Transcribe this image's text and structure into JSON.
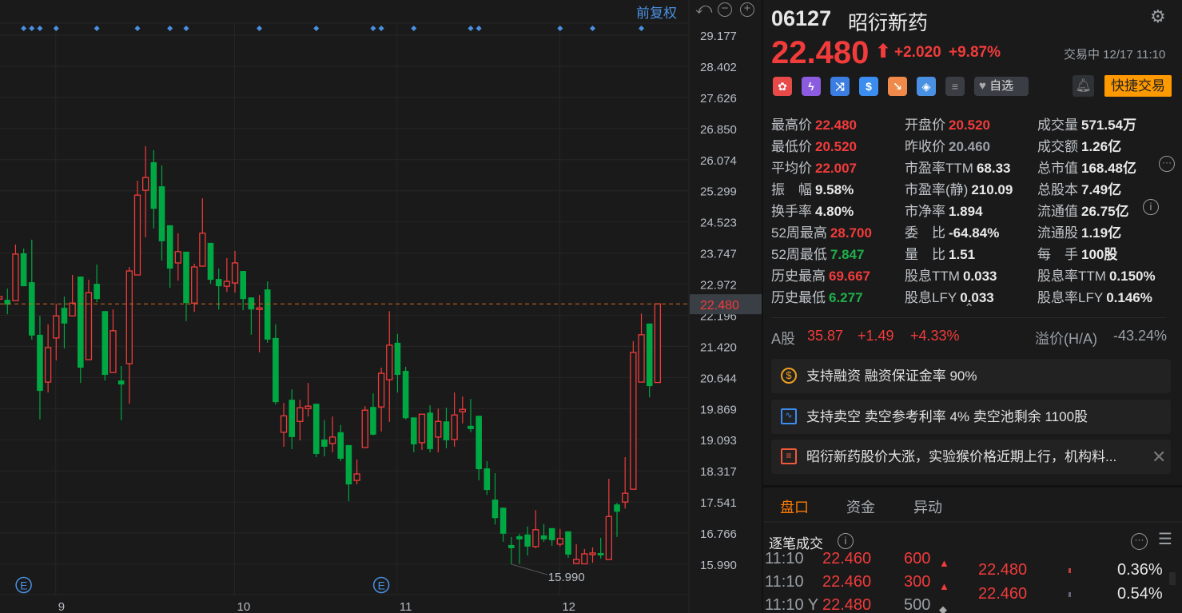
{
  "toolbar": {
    "adjust_label": "前复权",
    "icons": [
      "undo-icon",
      "zoom-out-icon",
      "zoom-in-icon"
    ]
  },
  "chart_data": {
    "type": "candlestick",
    "y_ticks": [
      "29.177",
      "28.402",
      "27.626",
      "26.850",
      "26.074",
      "25.299",
      "24.523",
      "23.747",
      "22.972",
      "22.196",
      "21.420",
      "20.644",
      "19.869",
      "19.093",
      "18.317",
      "17.541",
      "16.766",
      "15.990"
    ],
    "ylim": [
      15.99,
      29.177
    ],
    "x_ticks": [
      {
        "label": "9",
        "candle": 7
      },
      {
        "label": "10",
        "candle": 29
      },
      {
        "label": "11",
        "candle": 49
      },
      {
        "label": "12",
        "candle": 69
      }
    ],
    "current_price": "22.480",
    "low_marker": {
      "label": "15.990",
      "candle": 63
    },
    "event_markers": [
      3,
      4,
      5,
      7,
      12,
      17,
      21,
      23,
      32,
      39,
      46,
      47,
      51,
      58,
      59,
      69,
      73,
      79
    ],
    "e_markers": [
      3,
      47
    ],
    "colors": {
      "up": "#f23b3b",
      "down": "#00a843",
      "price_line": "#d2691e",
      "event": "#4a90e2"
    },
    "ohlc": [
      [
        22.6,
        22.72,
        22.56,
        22.66
      ],
      [
        22.58,
        22.86,
        22.22,
        22.46
      ],
      [
        22.56,
        23.96,
        22.56,
        23.72
      ],
      [
        23.74,
        23.86,
        22.92,
        22.92
      ],
      [
        23.02,
        24.08,
        21.59,
        21.69
      ],
      [
        21.71,
        22.18,
        19.6,
        20.31
      ],
      [
        20.53,
        21.97,
        20.27,
        21.39
      ],
      [
        21.63,
        22.48,
        21.07,
        22.18
      ],
      [
        22.38,
        22.66,
        21.37,
        21.99
      ],
      [
        22.18,
        23.2,
        22.18,
        22.5
      ],
      [
        23.16,
        23.16,
        20.51,
        20.89
      ],
      [
        21.09,
        23.08,
        21.09,
        22.76
      ],
      [
        22.98,
        23.46,
        22.52,
        22.6
      ],
      [
        22.3,
        22.3,
        20.57,
        20.71
      ],
      [
        20.77,
        22.34,
        20.77,
        21.81
      ],
      [
        20.57,
        20.93,
        19.58,
        20.47
      ],
      [
        20.99,
        23.4,
        19.99,
        23.3
      ],
      [
        23.2,
        25.55,
        23.2,
        25.19
      ],
      [
        25.31,
        26.41,
        24.14,
        25.63
      ],
      [
        26.01,
        26.31,
        24.36,
        24.85
      ],
      [
        25.41,
        25.93,
        23.56,
        24.04
      ],
      [
        24.44,
        24.44,
        22.88,
        23.36
      ],
      [
        23.5,
        24.24,
        23.06,
        23.78
      ],
      [
        23.78,
        23.78,
        22.05,
        22.5
      ],
      [
        22.5,
        23.48,
        22.28,
        23.4
      ],
      [
        23.42,
        25.11,
        23.42,
        24.24
      ],
      [
        24.0,
        24.0,
        22.98,
        23.08
      ],
      [
        23.1,
        23.36,
        22.34,
        22.92
      ],
      [
        22.92,
        23.62,
        22.78,
        23.04
      ],
      [
        23.0,
        23.8,
        22.76,
        23.5
      ],
      [
        23.3,
        23.3,
        22.32,
        22.6
      ],
      [
        22.64,
        22.64,
        21.71,
        22.34
      ],
      [
        22.34,
        22.7,
        21.27,
        22.38
      ],
      [
        22.84,
        23.04,
        21.51,
        21.59
      ],
      [
        21.63,
        21.97,
        19.97,
        20.03
      ],
      [
        19.28,
        20.01,
        18.92,
        19.69
      ],
      [
        20.09,
        20.35,
        18.86,
        19.16
      ],
      [
        19.55,
        20.09,
        19.08,
        19.89
      ],
      [
        19.87,
        20.51,
        19.67,
        19.93
      ],
      [
        19.99,
        19.99,
        18.66,
        18.74
      ],
      [
        19.1,
        19.58,
        18.68,
        18.92
      ],
      [
        19.0,
        19.67,
        18.78,
        19.16
      ],
      [
        19.28,
        19.46,
        18.56,
        18.62
      ],
      [
        18.96,
        18.96,
        17.56,
        17.98
      ],
      [
        18.08,
        18.6,
        17.98,
        18.24
      ],
      [
        18.9,
        19.93,
        18.9,
        19.83
      ],
      [
        19.91,
        20.25,
        19.2,
        19.22
      ],
      [
        19.91,
        20.89,
        19.3,
        20.75
      ],
      [
        20.59,
        22.3,
        19.54,
        21.45
      ],
      [
        21.51,
        21.73,
        20.27,
        20.71
      ],
      [
        20.81,
        20.91,
        19.6,
        19.63
      ],
      [
        19.65,
        19.65,
        18.78,
        18.98
      ],
      [
        19.02,
        19.73,
        18.84,
        19.73
      ],
      [
        19.77,
        19.95,
        18.78,
        18.86
      ],
      [
        19.16,
        19.87,
        18.78,
        19.55
      ],
      [
        19.55,
        19.89,
        18.88,
        19.08
      ],
      [
        19.1,
        20.27,
        18.92,
        19.71
      ],
      [
        19.79,
        20.17,
        19.5,
        19.85
      ],
      [
        19.44,
        20.11,
        19.28,
        19.36
      ],
      [
        19.69,
        19.69,
        18.08,
        18.36
      ],
      [
        18.38,
        18.56,
        17.72,
        17.84
      ],
      [
        17.6,
        18.26,
        16.98,
        17.14
      ],
      [
        17.4,
        17.4,
        16.55,
        16.75
      ],
      [
        16.47,
        16.67,
        15.99,
        16.39
      ],
      [
        16.69,
        16.75,
        16.0,
        16.61
      ],
      [
        16.73,
        16.93,
        16.21,
        16.43
      ],
      [
        16.43,
        17.34,
        16.39,
        16.85
      ],
      [
        16.71,
        16.99,
        16.55,
        16.61
      ],
      [
        16.89,
        16.89,
        16.45,
        16.59
      ],
      [
        16.49,
        16.87,
        16.43,
        16.63
      ],
      [
        16.81,
        16.81,
        16.15,
        16.23
      ],
      [
        16.01,
        16.49,
        16.0,
        16.11
      ],
      [
        16.0,
        16.37,
        16.0,
        16.25
      ],
      [
        16.23,
        16.41,
        16.03,
        16.27
      ],
      [
        16.27,
        16.65,
        16.13,
        16.21
      ],
      [
        16.11,
        18.12,
        16.11,
        17.18
      ],
      [
        17.48,
        17.52,
        16.67,
        17.3
      ],
      [
        17.54,
        18.66,
        17.38,
        17.76
      ],
      [
        17.86,
        21.55,
        17.86,
        21.27
      ],
      [
        20.53,
        22.24,
        20.53,
        21.71
      ],
      [
        21.99,
        21.99,
        20.15,
        20.43
      ],
      [
        20.52,
        22.48,
        20.52,
        22.48
      ]
    ]
  },
  "header": {
    "code": "06127",
    "name": "昭衍新药",
    "price": "22.480",
    "change": "+2.020",
    "change_pct": "+9.87%",
    "status": "交易中 12/17 11:10",
    "watch_label": "自选",
    "quick_trade": "快捷交易",
    "colors": {
      "up": "#f23b3b",
      "quick_trade_bg": "#ff9900"
    }
  },
  "stats": [
    [
      {
        "k": "最高价",
        "v": "22.480",
        "c": "red"
      },
      {
        "k": "开盘价",
        "v": "20.520",
        "c": "red"
      },
      {
        "k": "成交量",
        "v": "571.54万",
        "c": "white"
      }
    ],
    [
      {
        "k": "最低价",
        "v": "20.520",
        "c": "red"
      },
      {
        "k": "昨收价",
        "v": "20.460",
        "c": "grey"
      },
      {
        "k": "成交额",
        "v": "1.26亿",
        "c": "white"
      }
    ],
    [
      {
        "k": "平均价",
        "v": "22.007",
        "c": "red"
      },
      {
        "k": "市盈率TTM",
        "v": "68.33",
        "c": "white"
      },
      {
        "k": "总市值",
        "v": "168.48亿",
        "c": "white"
      }
    ],
    [
      {
        "k": "振　幅",
        "v": "9.58%",
        "c": "white"
      },
      {
        "k": "市盈率(静)",
        "v": "210.09",
        "c": "white"
      },
      {
        "k": "总股本",
        "v": "7.49亿",
        "c": "white"
      }
    ],
    [
      {
        "k": "换手率",
        "v": "4.80%",
        "c": "white"
      },
      {
        "k": "市净率",
        "v": "1.894",
        "c": "white"
      },
      {
        "k": "流通值",
        "v": "26.75亿",
        "c": "white"
      }
    ],
    [
      {
        "k": "52周最高",
        "v": "28.700",
        "c": "red"
      },
      {
        "k": "委　比",
        "v": "-64.84%",
        "c": "white"
      },
      {
        "k": "流通股",
        "v": "1.19亿",
        "c": "white"
      }
    ],
    [
      {
        "k": "52周最低",
        "v": "7.847",
        "c": "green"
      },
      {
        "k": "量　比",
        "v": "1.51",
        "c": "white"
      },
      {
        "k": "每　手",
        "v": "100股",
        "c": "white"
      }
    ],
    [
      {
        "k": "历史最高",
        "v": "69.667",
        "c": "red"
      },
      {
        "k": "股息TTM",
        "v": "0.033",
        "c": "white"
      },
      {
        "k": "股息率TTM",
        "v": "0.150%",
        "c": "white"
      }
    ],
    [
      {
        "k": "历史最低",
        "v": "6.277",
        "c": "green"
      },
      {
        "k": "股息LFY",
        "v": "0.033",
        "c": "white"
      },
      {
        "k": "股息率LFY",
        "v": "0.146%",
        "c": "white"
      }
    ]
  ],
  "ashare": {
    "label": "A股",
    "price": "35.87",
    "change": "+1.49",
    "pct": "+4.33%",
    "premium_label": "溢价(H/A)",
    "premium": "-43.24%"
  },
  "cards": [
    {
      "text": "支持融资 融资保证金率 90%",
      "icon": "margin-coin-icon"
    },
    {
      "text": "支持卖空 卖空参考利率 4% 卖空池剩余 1100股",
      "icon": "short-sell-icon"
    },
    {
      "text": "昭衍新药股价大涨，实验猴价格近期上行，机构料...",
      "icon": "news-icon"
    }
  ],
  "tabs": [
    "盘口",
    "资金",
    "异动"
  ],
  "ticks": {
    "title": "逐笔成交",
    "rows": [
      {
        "time": "11:10",
        "price": "22.460",
        "vol": "600",
        "dir": "up"
      },
      {
        "time": "11:10",
        "price": "22.460",
        "vol": "300",
        "dir": "up"
      },
      {
        "time": "11:10 Y",
        "price": "22.480",
        "vol": "500",
        "dir": "neutral"
      }
    ],
    "dist": [
      {
        "price": "22.480",
        "pct": "0.36%"
      },
      {
        "price": "22.460",
        "pct": "0.54%"
      }
    ]
  }
}
